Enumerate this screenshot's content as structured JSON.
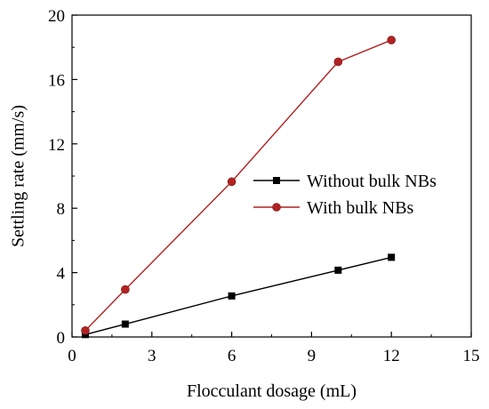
{
  "chart_data": {
    "type": "line",
    "title": "",
    "xlabel": "Flocculant dosage (mL)",
    "ylabel": "Settling rate (mm/s)",
    "xlim": [
      0,
      15
    ],
    "ylim": [
      0,
      20
    ],
    "xticks": [
      0,
      3,
      6,
      9,
      12,
      15
    ],
    "yticks": [
      0,
      4,
      8,
      12,
      16,
      20
    ],
    "grid": false,
    "legend_position": "center-right",
    "series": [
      {
        "name": "Without bulk NBs",
        "color": "#000000",
        "marker": "square",
        "x": [
          0.5,
          2,
          6,
          10,
          12
        ],
        "y": [
          0.15,
          0.8,
          2.55,
          4.15,
          4.95
        ]
      },
      {
        "name": "With bulk NBs",
        "color": "#b22222",
        "marker": "circle",
        "x": [
          0.5,
          2,
          6,
          10,
          12
        ],
        "y": [
          0.4,
          2.95,
          9.65,
          17.1,
          18.45
        ]
      }
    ]
  }
}
